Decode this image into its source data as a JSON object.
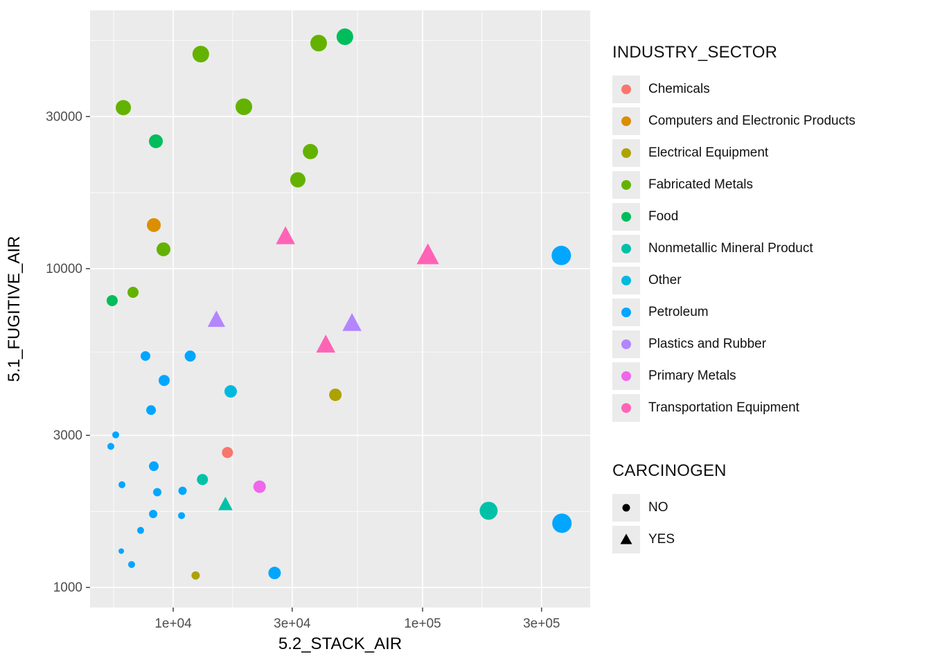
{
  "chart_data": {
    "type": "scatter",
    "xlabel": "5.2_STACK_AIR",
    "ylabel": "5.1_FUGITIVE_AIR",
    "x_scale": "log10",
    "y_scale": "log10",
    "x_ticks": [
      10000,
      30000,
      100000,
      300000
    ],
    "x_tick_labels": [
      "1e+04",
      "3e+04",
      "1e+05",
      "3e+05"
    ],
    "y_ticks": [
      1000,
      3000,
      10000,
      30000
    ],
    "y_tick_labels": [
      "1000",
      "3000",
      "10000",
      "30000"
    ],
    "x_domain": [
      4640,
      470000
    ],
    "y_domain": [
      865,
      64600
    ],
    "panel_bg": "#EBEBEB",
    "grid_color": "#FFFFFF",
    "tick_label_color": "#4D4D4D",
    "axis_title_color": "#000000",
    "legend": {
      "sector_title": "INDUSTRY_SECTOR",
      "sectors": [
        {
          "label": "Chemicals",
          "color": "#F8766D"
        },
        {
          "label": "Computers and Electronic Products",
          "color": "#DB8E00"
        },
        {
          "label": "Electrical Equipment",
          "color": "#AEA200"
        },
        {
          "label": "Fabricated Metals",
          "color": "#64B200"
        },
        {
          "label": "Food",
          "color": "#00BD5C"
        },
        {
          "label": "Nonmetallic Mineral Product",
          "color": "#00C1A7"
        },
        {
          "label": "Other",
          "color": "#00BADE"
        },
        {
          "label": "Petroleum",
          "color": "#00A6FF"
        },
        {
          "label": "Plastics and Rubber",
          "color": "#B385FF"
        },
        {
          "label": "Primary Metals",
          "color": "#EF67EB"
        },
        {
          "label": "Transportation Equipment",
          "color": "#FF63B6"
        }
      ],
      "carcinogen_title": "CARCINOGEN",
      "carcinogen_items": [
        {
          "label": "NO",
          "shape": "circle"
        },
        {
          "label": "YES",
          "shape": "triangle"
        }
      ],
      "key_bg": "#EBEBEB"
    },
    "points": [
      {
        "x": 12900,
        "y": 47100,
        "sector": "Fabricated Metals",
        "carcinogen": "NO",
        "r": 12
      },
      {
        "x": 38300,
        "y": 51000,
        "sector": "Fabricated Metals",
        "carcinogen": "NO",
        "r": 12
      },
      {
        "x": 48800,
        "y": 53400,
        "sector": "Food",
        "carcinogen": "NO",
        "r": 12
      },
      {
        "x": 6310,
        "y": 32000,
        "sector": "Fabricated Metals",
        "carcinogen": "NO",
        "r": 11
      },
      {
        "x": 19200,
        "y": 32200,
        "sector": "Fabricated Metals",
        "carcinogen": "NO",
        "r": 12
      },
      {
        "x": 8520,
        "y": 25100,
        "sector": "Food",
        "carcinogen": "NO",
        "r": 10
      },
      {
        "x": 35500,
        "y": 23300,
        "sector": "Fabricated Metals",
        "carcinogen": "NO",
        "r": 11
      },
      {
        "x": 31600,
        "y": 19000,
        "sector": "Fabricated Metals",
        "carcinogen": "NO",
        "r": 11
      },
      {
        "x": 8360,
        "y": 13700,
        "sector": "Computers and Electronic Products",
        "carcinogen": "NO",
        "r": 10
      },
      {
        "x": 9140,
        "y": 11500,
        "sector": "Fabricated Metals",
        "carcinogen": "NO",
        "r": 10
      },
      {
        "x": 28200,
        "y": 12600,
        "sector": "Transportation Equipment",
        "carcinogen": "YES",
        "r": 12
      },
      {
        "x": 105000,
        "y": 11000,
        "sector": "Transportation Equipment",
        "carcinogen": "YES",
        "r": 14
      },
      {
        "x": 360000,
        "y": 11000,
        "sector": "Petroleum",
        "carcinogen": "NO",
        "r": 14
      },
      {
        "x": 5690,
        "y": 7940,
        "sector": "Food",
        "carcinogen": "NO",
        "r": 8
      },
      {
        "x": 6900,
        "y": 8430,
        "sector": "Fabricated Metals",
        "carcinogen": "NO",
        "r": 8
      },
      {
        "x": 14900,
        "y": 6900,
        "sector": "Plastics and Rubber",
        "carcinogen": "YES",
        "r": 11
      },
      {
        "x": 52100,
        "y": 6730,
        "sector": "Plastics and Rubber",
        "carcinogen": "YES",
        "r": 12
      },
      {
        "x": 40900,
        "y": 5760,
        "sector": "Transportation Equipment",
        "carcinogen": "YES",
        "r": 12
      },
      {
        "x": 7740,
        "y": 5320,
        "sector": "Petroleum",
        "carcinogen": "NO",
        "r": 7
      },
      {
        "x": 11700,
        "y": 5320,
        "sector": "Petroleum",
        "carcinogen": "NO",
        "r": 8
      },
      {
        "x": 9200,
        "y": 4460,
        "sector": "Petroleum",
        "carcinogen": "NO",
        "r": 8
      },
      {
        "x": 17000,
        "y": 4120,
        "sector": "Other",
        "carcinogen": "NO",
        "r": 9
      },
      {
        "x": 44700,
        "y": 4020,
        "sector": "Electrical Equipment",
        "carcinogen": "NO",
        "r": 9
      },
      {
        "x": 8150,
        "y": 3600,
        "sector": "Petroleum",
        "carcinogen": "NO",
        "r": 7
      },
      {
        "x": 5880,
        "y": 3010,
        "sector": "Petroleum",
        "carcinogen": "NO",
        "r": 5
      },
      {
        "x": 5620,
        "y": 2770,
        "sector": "Petroleum",
        "carcinogen": "NO",
        "r": 5
      },
      {
        "x": 16500,
        "y": 2650,
        "sector": "Chemicals",
        "carcinogen": "NO",
        "r": 8
      },
      {
        "x": 8360,
        "y": 2400,
        "sector": "Petroleum",
        "carcinogen": "NO",
        "r": 7
      },
      {
        "x": 6230,
        "y": 2100,
        "sector": "Petroleum",
        "carcinogen": "NO",
        "r": 5
      },
      {
        "x": 13100,
        "y": 2180,
        "sector": "Nonmetallic Mineral Product",
        "carcinogen": "NO",
        "r": 8
      },
      {
        "x": 22200,
        "y": 2070,
        "sector": "Primary Metals",
        "carcinogen": "NO",
        "r": 9
      },
      {
        "x": 8630,
        "y": 1990,
        "sector": "Petroleum",
        "carcinogen": "NO",
        "r": 6
      },
      {
        "x": 10900,
        "y": 2010,
        "sector": "Petroleum",
        "carcinogen": "NO",
        "r": 6
      },
      {
        "x": 16200,
        "y": 1820,
        "sector": "Nonmetallic Mineral Product",
        "carcinogen": "YES",
        "r": 9
      },
      {
        "x": 8310,
        "y": 1700,
        "sector": "Petroleum",
        "carcinogen": "NO",
        "r": 6
      },
      {
        "x": 10800,
        "y": 1680,
        "sector": "Petroleum",
        "carcinogen": "NO",
        "r": 5
      },
      {
        "x": 184000,
        "y": 1740,
        "sector": "Nonmetallic Mineral Product",
        "carcinogen": "NO",
        "r": 13
      },
      {
        "x": 362000,
        "y": 1590,
        "sector": "Petroleum",
        "carcinogen": "NO",
        "r": 14
      },
      {
        "x": 7400,
        "y": 1510,
        "sector": "Petroleum",
        "carcinogen": "NO",
        "r": 5
      },
      {
        "x": 6190,
        "y": 1300,
        "sector": "Petroleum",
        "carcinogen": "NO",
        "r": 4
      },
      {
        "x": 6810,
        "y": 1180,
        "sector": "Petroleum",
        "carcinogen": "NO",
        "r": 5
      },
      {
        "x": 12300,
        "y": 1090,
        "sector": "Electrical Equipment",
        "carcinogen": "NO",
        "r": 6
      },
      {
        "x": 25500,
        "y": 1110,
        "sector": "Petroleum",
        "carcinogen": "NO",
        "r": 9
      }
    ]
  }
}
